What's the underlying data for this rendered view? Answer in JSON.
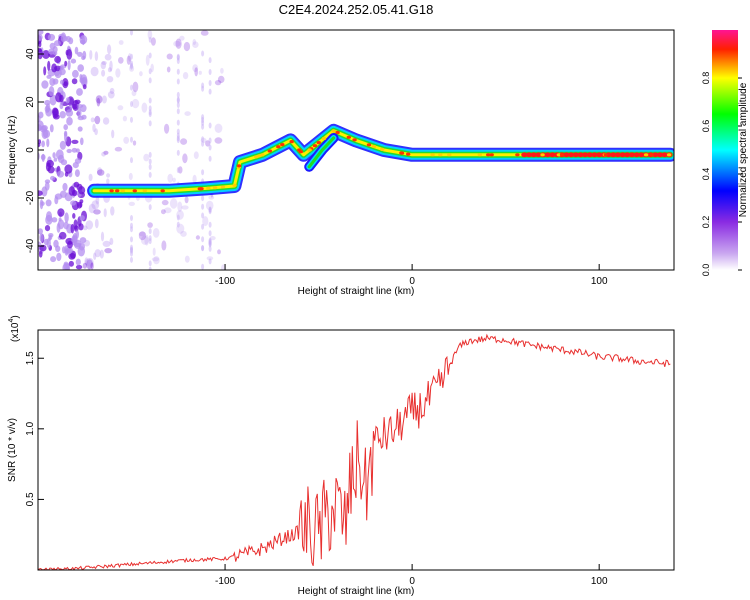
{
  "figure": {
    "title": "C2E4.2024.252.05.41.G18"
  },
  "chart_data": [
    {
      "type": "heatmap",
      "xlabel": "Height of straight line (km)",
      "ylabel": "Frequency (Hz)",
      "xlim": [
        -200,
        140
      ],
      "ylim": [
        -50,
        50
      ],
      "x_ticks": [
        -100,
        0,
        100
      ],
      "y_ticks": [
        -40,
        -20,
        0,
        20,
        40
      ],
      "colorbar": {
        "label": "Normalized spectral amplitude",
        "range": [
          0,
          1
        ],
        "ticks": [
          "0.0",
          "0.2",
          "0.4",
          "0.6",
          "0.8"
        ],
        "colors": [
          "#ffffff",
          "#8a2be2",
          "#0000ff",
          "#00ffff",
          "#00ff00",
          "#ffff00",
          "#ff0000",
          "#ff1493"
        ]
      },
      "ridge": [
        {
          "x": -170,
          "y": -17
        },
        {
          "x": -150,
          "y": -17
        },
        {
          "x": -130,
          "y": -17
        },
        {
          "x": -110,
          "y": -16
        },
        {
          "x": -95,
          "y": -15
        },
        {
          "x": -92,
          "y": -5
        },
        {
          "x": -80,
          "y": -2
        },
        {
          "x": -65,
          "y": 4
        },
        {
          "x": -58,
          "y": -2
        },
        {
          "x": -50,
          "y": 3
        },
        {
          "x": -42,
          "y": 8
        },
        {
          "x": -30,
          "y": 4
        },
        {
          "x": -15,
          "y": 0
        },
        {
          "x": 0,
          "y": -2
        },
        {
          "x": 20,
          "y": -2
        },
        {
          "x": 50,
          "y": -2
        },
        {
          "x": 80,
          "y": -2
        },
        {
          "x": 110,
          "y": -2
        },
        {
          "x": 138,
          "y": -2
        }
      ]
    },
    {
      "type": "line",
      "xlabel": "Height of straight line (km)",
      "ylabel": "SNR (10 * v/v)",
      "y_multiplier": "(x10",
      "y_multiplier_exp": "4",
      "y_multiplier_close": ")",
      "xlim": [
        -200,
        140
      ],
      "ylim": [
        0,
        1.7
      ],
      "x_ticks": [
        -100,
        0,
        100
      ],
      "y_ticks": [
        "0.5",
        "1.0",
        "1.5"
      ],
      "y_tick_values": [
        0.5,
        1.0,
        1.5
      ],
      "color": "#e8302f",
      "series": [
        {
          "x": [
            -200,
            -180,
            -160,
            -140,
            -120,
            -100,
            -90,
            -80,
            -70,
            -60,
            -55,
            -50,
            -45,
            -40,
            -36,
            -32,
            -28,
            -25,
            -20,
            -15,
            -10,
            -5,
            0,
            5,
            10,
            15,
            20,
            25,
            30,
            40,
            50,
            60,
            70,
            80,
            90,
            100,
            110,
            120,
            130,
            138
          ],
          "y": [
            0.0,
            0.01,
            0.03,
            0.05,
            0.07,
            0.08,
            0.11,
            0.15,
            0.22,
            0.27,
            0.3,
            0.25,
            0.4,
            0.45,
            0.3,
            0.65,
            0.8,
            0.55,
            0.9,
            0.95,
            0.98,
            1.05,
            1.12,
            1.15,
            1.22,
            1.3,
            1.45,
            1.58,
            1.62,
            1.64,
            1.63,
            1.6,
            1.58,
            1.56,
            1.54,
            1.51,
            1.5,
            1.48,
            1.47,
            1.46
          ]
        }
      ]
    }
  ]
}
